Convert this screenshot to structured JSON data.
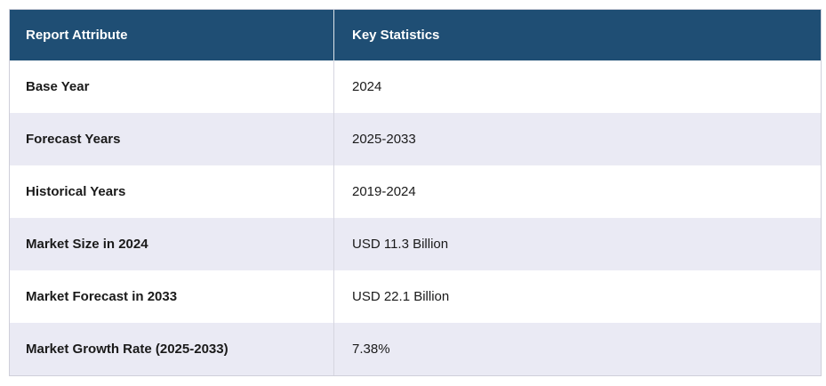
{
  "colors": {
    "header_background": "#1F4E74",
    "header_text": "#FFFFFF",
    "stripe_row_background": "#EAEAF4",
    "plain_row_background": "#FFFFFF",
    "body_text": "#1A1A1A",
    "divider_line": "#D6D6E0",
    "outer_border": "#CFCFDA"
  },
  "table": {
    "columns": [
      "Report Attribute",
      "Key Statistics"
    ],
    "rows": [
      {
        "attribute": "Base Year",
        "value": "2024"
      },
      {
        "attribute": "Forecast Years",
        "value": "2025-2033"
      },
      {
        "attribute": "Historical Years",
        "value": "2019-2024"
      },
      {
        "attribute": "Market Size in 2024",
        "value": "USD 11.3 Billion"
      },
      {
        "attribute": "Market Forecast in 2033",
        "value": "USD 22.1 Billion"
      },
      {
        "attribute": "Market Growth Rate (2025-2033)",
        "value": "7.38%"
      }
    ]
  },
  "chart_data": {
    "type": "table",
    "columns": [
      "Report Attribute",
      "Key Statistics"
    ],
    "rows": [
      [
        "Base Year",
        "2024"
      ],
      [
        "Forecast Years",
        "2025-2033"
      ],
      [
        "Historical Years",
        "2019-2024"
      ],
      [
        "Market Size in 2024",
        "USD 11.3 Billion"
      ],
      [
        "Market Forecast in 2033",
        "USD 22.1 Billion"
      ],
      [
        "Market Growth Rate (2025-2033)",
        "7.38%"
      ]
    ]
  }
}
